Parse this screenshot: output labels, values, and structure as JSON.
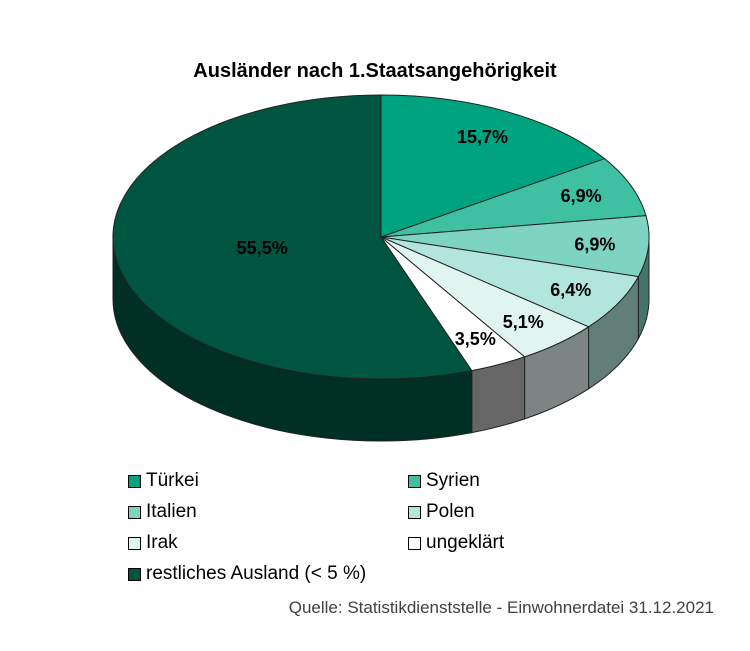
{
  "chart_data": {
    "type": "pie",
    "title": "Ausländer nach 1.Staatsangehörigkeit",
    "categories": [
      "Türkei",
      "Syrien",
      "Italien",
      "Polen",
      "Irak",
      "ungeklärt",
      "restliches Ausland (< 5 %)"
    ],
    "values": [
      15.7,
      6.9,
      6.9,
      6.4,
      5.1,
      3.5,
      55.5
    ],
    "data_labels": [
      "15,7%",
      "6,9%",
      "6,9%",
      "6,4%",
      "5,1%",
      "3,5%",
      "55,5%"
    ],
    "colors": [
      "#00a380",
      "#3fc0a3",
      "#7fd3c2",
      "#b2e5dc",
      "#e0f4f0",
      "#ffffff",
      "#005540"
    ],
    "legend_placement": "bottom"
  },
  "legend": {
    "items": [
      "Türkei",
      "Syrien",
      "Italien",
      "Polen",
      "Irak",
      "ungeklärt",
      "restliches Ausland (< 5 %)"
    ]
  },
  "source": "Quelle: Statistikdienststelle - Einwohnerdatei 31.12.2021"
}
